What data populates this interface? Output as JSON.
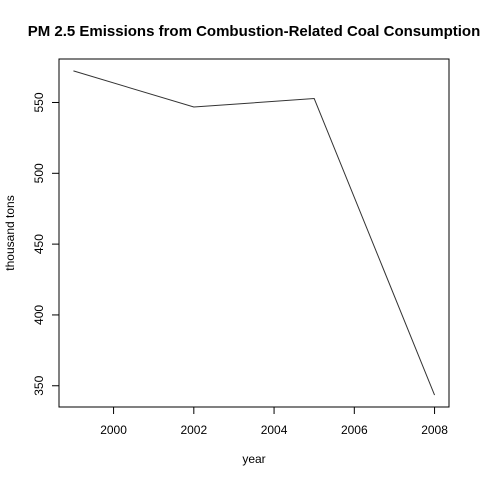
{
  "chart_data": {
    "type": "line",
    "title": "PM 2.5 Emissions from Combustion-Related Coal Consumption",
    "xlabel": "year",
    "ylabel": "thousand tons",
    "x": [
      1999,
      2002,
      2005,
      2008
    ],
    "series": [
      {
        "values": [
          572.3,
          546.8,
          552.8,
          343.4
        ],
        "color": "#333333"
      }
    ],
    "xlim": [
      1998.64,
      2008.36
    ],
    "ylim": [
      335.0,
      580.7
    ],
    "xticks": [
      2000,
      2002,
      2004,
      2006,
      2008
    ],
    "xtick_labels": [
      "2000",
      "2002",
      "2004",
      "2006",
      "2008"
    ],
    "yticks": [
      350,
      400,
      450,
      500,
      550
    ],
    "ytick_labels": [
      "350",
      "400",
      "450",
      "500",
      "550"
    ],
    "grid": false,
    "legend": "none"
  }
}
